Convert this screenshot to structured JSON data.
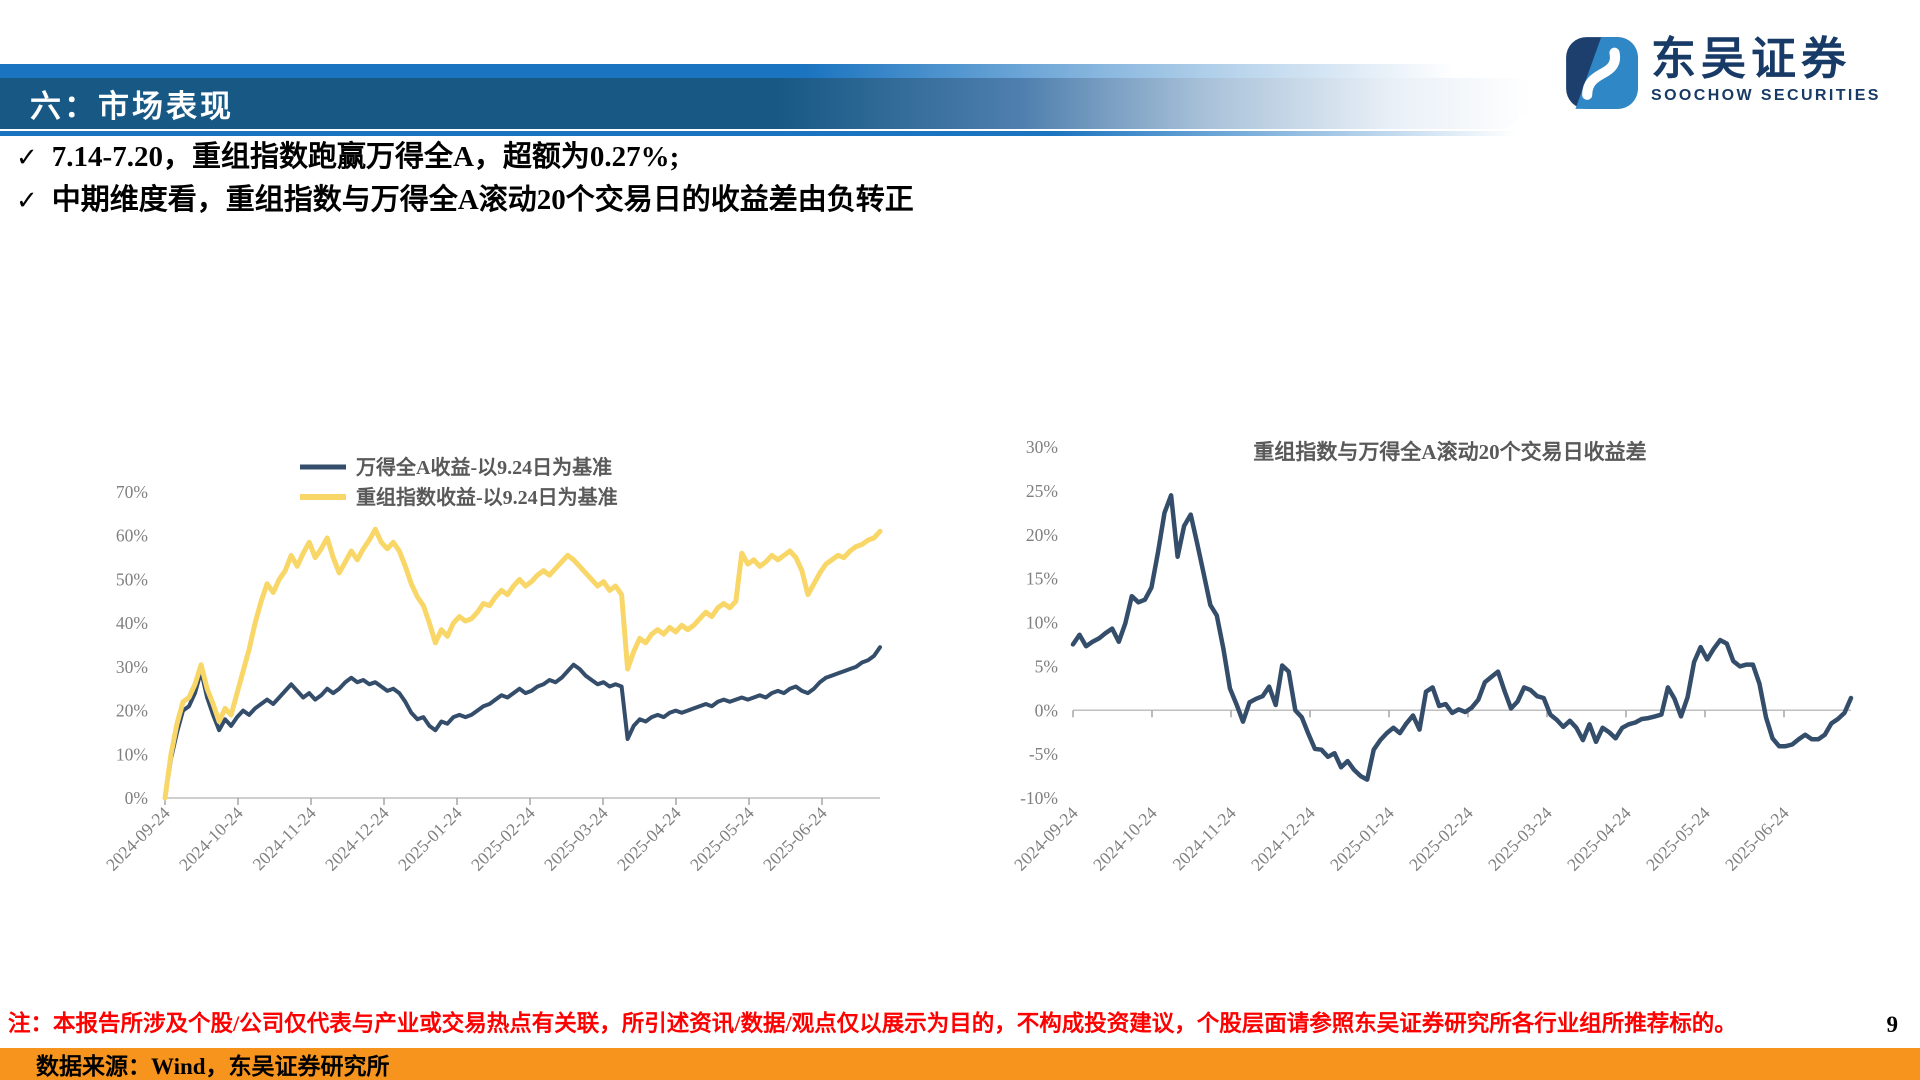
{
  "header": {
    "title": "六：市场表现"
  },
  "logo": {
    "cn": "东吴证券",
    "en": "SOOCHOW SECURITIES",
    "navy": "#173a66",
    "blue": "#2f87c6"
  },
  "bullets": [
    {
      "mark": "✓",
      "text": "7.14-7.20，重组指数跑赢万得全A，超额为0.27%;"
    },
    {
      "mark": "✓",
      "text": "中期维度看，重组指数与万得全A滚动20个交易日的收益差由负转正"
    }
  ],
  "chart_data": [
    {
      "type": "line",
      "title": "",
      "legend_position": "top-center",
      "grid": false,
      "x_tick_labels": [
        "2024-09-24",
        "2024-10-24",
        "2024-11-24",
        "2024-12-24",
        "2025-01-24",
        "2025-02-24",
        "2025-03-24",
        "2025-04-24",
        "2025-05-24",
        "2025-06-24"
      ],
      "ylim": [
        0,
        70
      ],
      "yticks": [
        {
          "v": 0,
          "label": "0%"
        },
        {
          "v": 10,
          "label": "10%"
        },
        {
          "v": 20,
          "label": "20%"
        },
        {
          "v": 30,
          "label": "30%"
        },
        {
          "v": 40,
          "label": "40%"
        },
        {
          "v": 50,
          "label": "50%"
        },
        {
          "v": 60,
          "label": "60%"
        },
        {
          "v": 70,
          "label": "70%"
        }
      ],
      "series": [
        {
          "name": "万得全A收益-以9.24日为基准",
          "color": "#344d6a",
          "values": [
            0,
            9,
            15,
            20,
            21,
            24,
            29,
            23,
            19,
            15.5,
            18,
            16.5,
            18.5,
            20,
            19,
            20.5,
            21.5,
            22.5,
            21.5,
            23,
            24.5,
            26,
            24.5,
            23,
            24,
            22.5,
            23.5,
            25,
            24,
            25,
            26.5,
            27.5,
            26.5,
            27,
            26,
            26.5,
            25.5,
            24.5,
            25,
            24,
            22,
            19.5,
            18,
            18.5,
            16.5,
            15.5,
            17.5,
            17,
            18.5,
            19,
            18.5,
            19,
            20,
            21,
            21.5,
            22.5,
            23.5,
            23,
            24,
            25,
            24,
            24.5,
            25.5,
            26,
            27,
            26.5,
            27.5,
            29,
            30.5,
            29.5,
            28,
            27,
            26,
            26.5,
            25.5,
            26,
            25.5,
            13.5,
            16.5,
            18,
            17.5,
            18.5,
            19,
            18.5,
            19.5,
            20,
            19.5,
            20,
            20.5,
            21,
            21.5,
            21,
            22,
            22.5,
            22,
            22.5,
            23,
            22.5,
            23,
            23.5,
            23,
            24,
            24.5,
            24,
            25,
            25.5,
            24.5,
            24,
            25,
            26.5,
            27.5,
            28,
            28.5,
            29,
            29.5,
            30,
            31,
            31.5,
            32.5,
            34.5
          ]
        },
        {
          "name": "重组指数收益-以9.24日为基准",
          "color": "#f8d768",
          "values": [
            0,
            10,
            17,
            22,
            23,
            26,
            30.5,
            25,
            21.5,
            17.5,
            20.5,
            19,
            24,
            29,
            34,
            40,
            45,
            49,
            47,
            50,
            52,
            55.5,
            53,
            56,
            58.5,
            55,
            57,
            59.5,
            55,
            51.5,
            54,
            56.5,
            54.5,
            57,
            59,
            61.5,
            58.5,
            57,
            58.5,
            56.5,
            53,
            49,
            46,
            44,
            40,
            35.5,
            38.5,
            37,
            40,
            41.5,
            40.5,
            41,
            42.5,
            44.5,
            44,
            46,
            47.5,
            46.5,
            48.5,
            50,
            48.5,
            49.5,
            51,
            52,
            51,
            52.5,
            54,
            55.5,
            54.5,
            53,
            51.5,
            50,
            48.5,
            49.5,
            47.5,
            48.5,
            46.5,
            29.5,
            33.5,
            36.5,
            35.5,
            37.5,
            38.5,
            37.5,
            39,
            38,
            39.5,
            38.5,
            39.5,
            41,
            42.5,
            41.5,
            43.5,
            44.5,
            43.5,
            45,
            56,
            53.5,
            54.5,
            53,
            54,
            55.5,
            54.5,
            55.5,
            56.5,
            55,
            52,
            46.5,
            49,
            51.5,
            53.5,
            54.5,
            55.5,
            55,
            56.5,
            57.5,
            58,
            59,
            59.5,
            61
          ]
        }
      ]
    },
    {
      "type": "line",
      "title": "重组指数与万得全A滚动20个交易日收益差",
      "grid": false,
      "x_tick_labels": [
        "2024-09-24",
        "2024-10-24",
        "2024-11-24",
        "2024-12-24",
        "2025-01-24",
        "2025-02-24",
        "2025-03-24",
        "2025-04-24",
        "2025-05-24",
        "2025-06-24"
      ],
      "ylim": [
        -10,
        30
      ],
      "yticks": [
        {
          "v": -10,
          "label": "-10%"
        },
        {
          "v": -5,
          "label": "-5%"
        },
        {
          "v": 0,
          "label": "0%"
        },
        {
          "v": 5,
          "label": "5%"
        },
        {
          "v": 10,
          "label": "10%"
        },
        {
          "v": 15,
          "label": "15%"
        },
        {
          "v": 20,
          "label": "20%"
        },
        {
          "v": 25,
          "label": "25%"
        },
        {
          "v": 30,
          "label": "30%"
        }
      ],
      "series": [
        {
          "color": "#344d6a",
          "values": [
            7.5,
            8.6,
            7.3,
            7.8,
            8.2,
            8.8,
            9.3,
            7.8,
            9.9,
            13,
            12.3,
            12.6,
            14,
            18,
            22.5,
            24.5,
            17.5,
            21,
            22.3,
            19,
            15.5,
            12,
            10.8,
            7,
            2.5,
            0.7,
            -1.3,
            0.9,
            1.3,
            1.6,
            2.7,
            0.6,
            5.1,
            4.4,
            0,
            -0.8,
            -2.7,
            -4.4,
            -4.5,
            -5.3,
            -4.9,
            -6.5,
            -5.8,
            -6.8,
            -7.5,
            -7.9,
            -4.5,
            -3.4,
            -2.6,
            -2,
            -2.6,
            -1.5,
            -0.6,
            -2.2,
            2.1,
            2.6,
            0.5,
            0.7,
            -0.3,
            0.1,
            -0.2,
            0.3,
            1.2,
            3.2,
            3.8,
            4.4,
            2.2,
            0.2,
            1,
            2.6,
            2.3,
            1.6,
            1.4,
            -0.5,
            -1.1,
            -1.9,
            -1.2,
            -2,
            -3.4,
            -1.6,
            -3.6,
            -2,
            -2.5,
            -3.2,
            -2,
            -1.6,
            -1.4,
            -1,
            -0.9,
            -0.7,
            -0.5,
            2.6,
            1.3,
            -0.7,
            1.5,
            5.5,
            7.2,
            5.8,
            7,
            8,
            7.6,
            5.6,
            5,
            5.2,
            5.2,
            3,
            -0.8,
            -3.2,
            -4.1,
            -4.1,
            -3.9,
            -3.3,
            -2.8,
            -3.3,
            -3.3,
            -2.8,
            -1.5,
            -1,
            -0.3,
            1.4
          ]
        }
      ]
    }
  ],
  "footnote": {
    "note": "注：本报告所涉及个股/公司仅代表与产业或交易热点有关联，所引述资讯/数据/观点仅以展示为目的，不构成投资建议，个股层面请参照东吴证券研究所各行业组所推荐标的。",
    "page_number": "9"
  },
  "footer": {
    "source": "数据来源：Wind，东吴证券研究所",
    "bar_color": "#f7941e"
  }
}
